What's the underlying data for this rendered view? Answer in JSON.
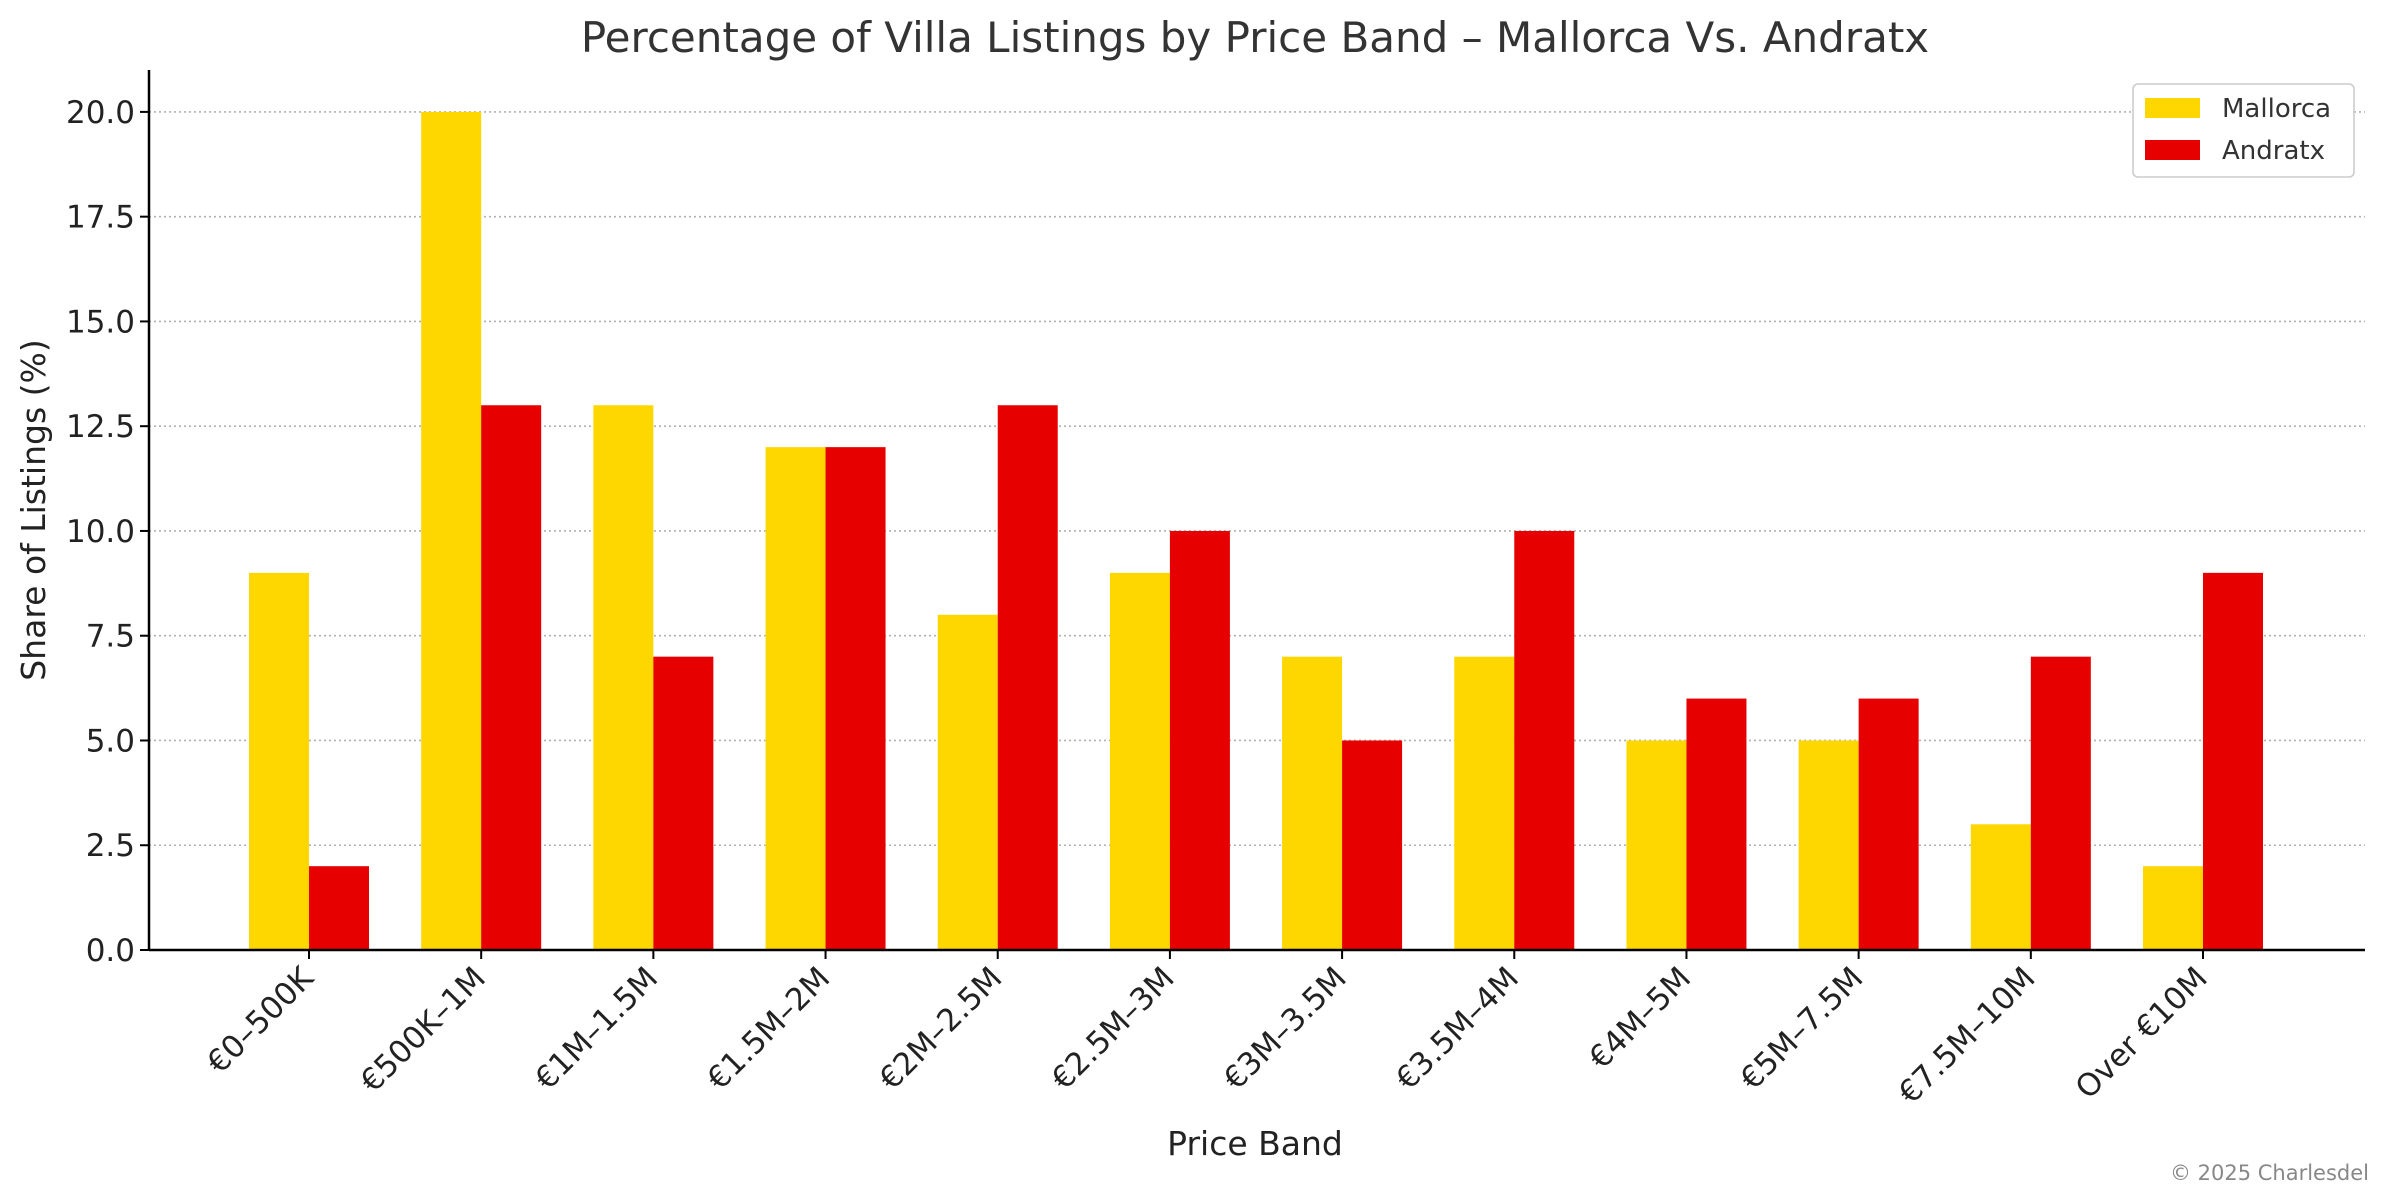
{
  "chart_data": {
    "type": "bar",
    "title": "Percentage of Villa Listings by Price Band – Mallorca Vs. Andratx",
    "xlabel": "Price Band",
    "ylabel": "Share of Listings (%)",
    "categories": [
      "€0–500K",
      "€500K–1M",
      "€1M–1.5M",
      "€1.5M–2M",
      "€2M–2.5M",
      "€2.5M–3M",
      "€3M–3.5M",
      "€3.5M–4M",
      "€4M–5M",
      "€5M–7.5M",
      "€7.5M–10M",
      "Over €10M"
    ],
    "series": [
      {
        "name": "Mallorca",
        "color": "#FFD700",
        "values": [
          9,
          20,
          13,
          12,
          8,
          9,
          7,
          7,
          5,
          5,
          3,
          2
        ]
      },
      {
        "name": "Andratx",
        "color": "#E60000",
        "values": [
          2,
          13,
          7,
          12,
          13,
          10,
          5,
          10,
          6,
          6,
          7,
          9
        ]
      }
    ],
    "ylim": [
      0,
      21
    ],
    "yticks": [
      "0.0",
      "2.5",
      "5.0",
      "7.5",
      "10.0",
      "12.5",
      "15.0",
      "17.5",
      "20.0"
    ],
    "grid": true,
    "legend_position": "top-right"
  },
  "credit": "© 2025 Charlesdel"
}
